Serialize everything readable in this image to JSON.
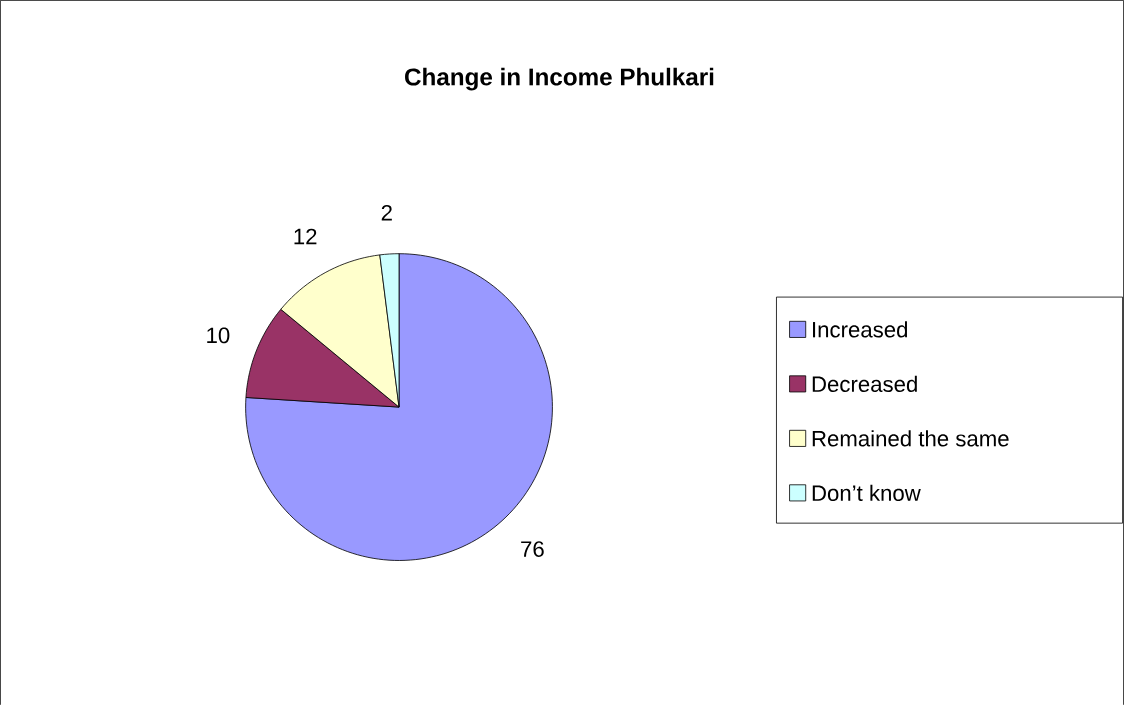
{
  "chart_data": {
    "type": "pie",
    "title": "Change in Income Phulkari",
    "categories": [
      "Increased",
      "Decreased",
      "Remained the same",
      "Don’t know"
    ],
    "values": [
      76,
      10,
      12,
      2
    ],
    "colors": [
      "#9999ff",
      "#993366",
      "#ffffcc",
      "#ccffff"
    ],
    "data_labels": true,
    "legend": "right"
  }
}
